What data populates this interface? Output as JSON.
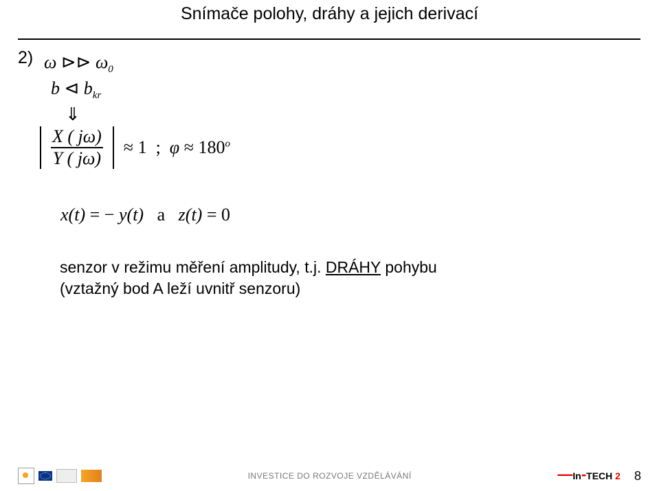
{
  "title": "Snímače polohy, dráhy a jejich derivací",
  "case_number": "2)",
  "line1_html": "<span>&omega;</span> <span class='sym'>⊳⊳</span> <span>&omega;</span><span class='sub'>0</span>",
  "line2_html": "<span>b</span> <span class='sym'>⊲</span> <span>b</span><span class='sub'>kr</span>",
  "down_arrow": "⇓",
  "frac_num_html": "X ( j&omega;)",
  "frac_den_html": "Y ( j&omega;)",
  "rhs_html": "<span class='sym'>≈</span> 1&nbsp;&nbsp;;&nbsp;&nbsp;<span style='font-style:italic'>&phi;</span> <span class='sym'>≈</span> 180<span class='sup'>o</span>",
  "line5_html": "<span>x</span>(<span>t</span>) <span class='sym'>=</span> <span class='sym'>&minus;</span> <span>y</span>(<span>t</span>)&nbsp;&nbsp;&nbsp;<span class='sym'>a</span>&nbsp;&nbsp;&nbsp;<span>z</span>(<span>t</span>) <span class='sym'>=</span> <span class='sym'>0</span>",
  "body_line1": "senzor v režimu měření amplitudy, t.j. ",
  "body_underlined": "DRÁHY",
  "body_line1_end": " pohybu",
  "body_line2": "(vztažný bod A leží uvnitř senzoru)",
  "footer_text": "INVESTICE DO ROZVOJE VZDĚLÁVÁNÍ",
  "intech_prefix": "In",
  "intech_suffix": "TECH",
  "intech_num": "2",
  "page_number": "8"
}
